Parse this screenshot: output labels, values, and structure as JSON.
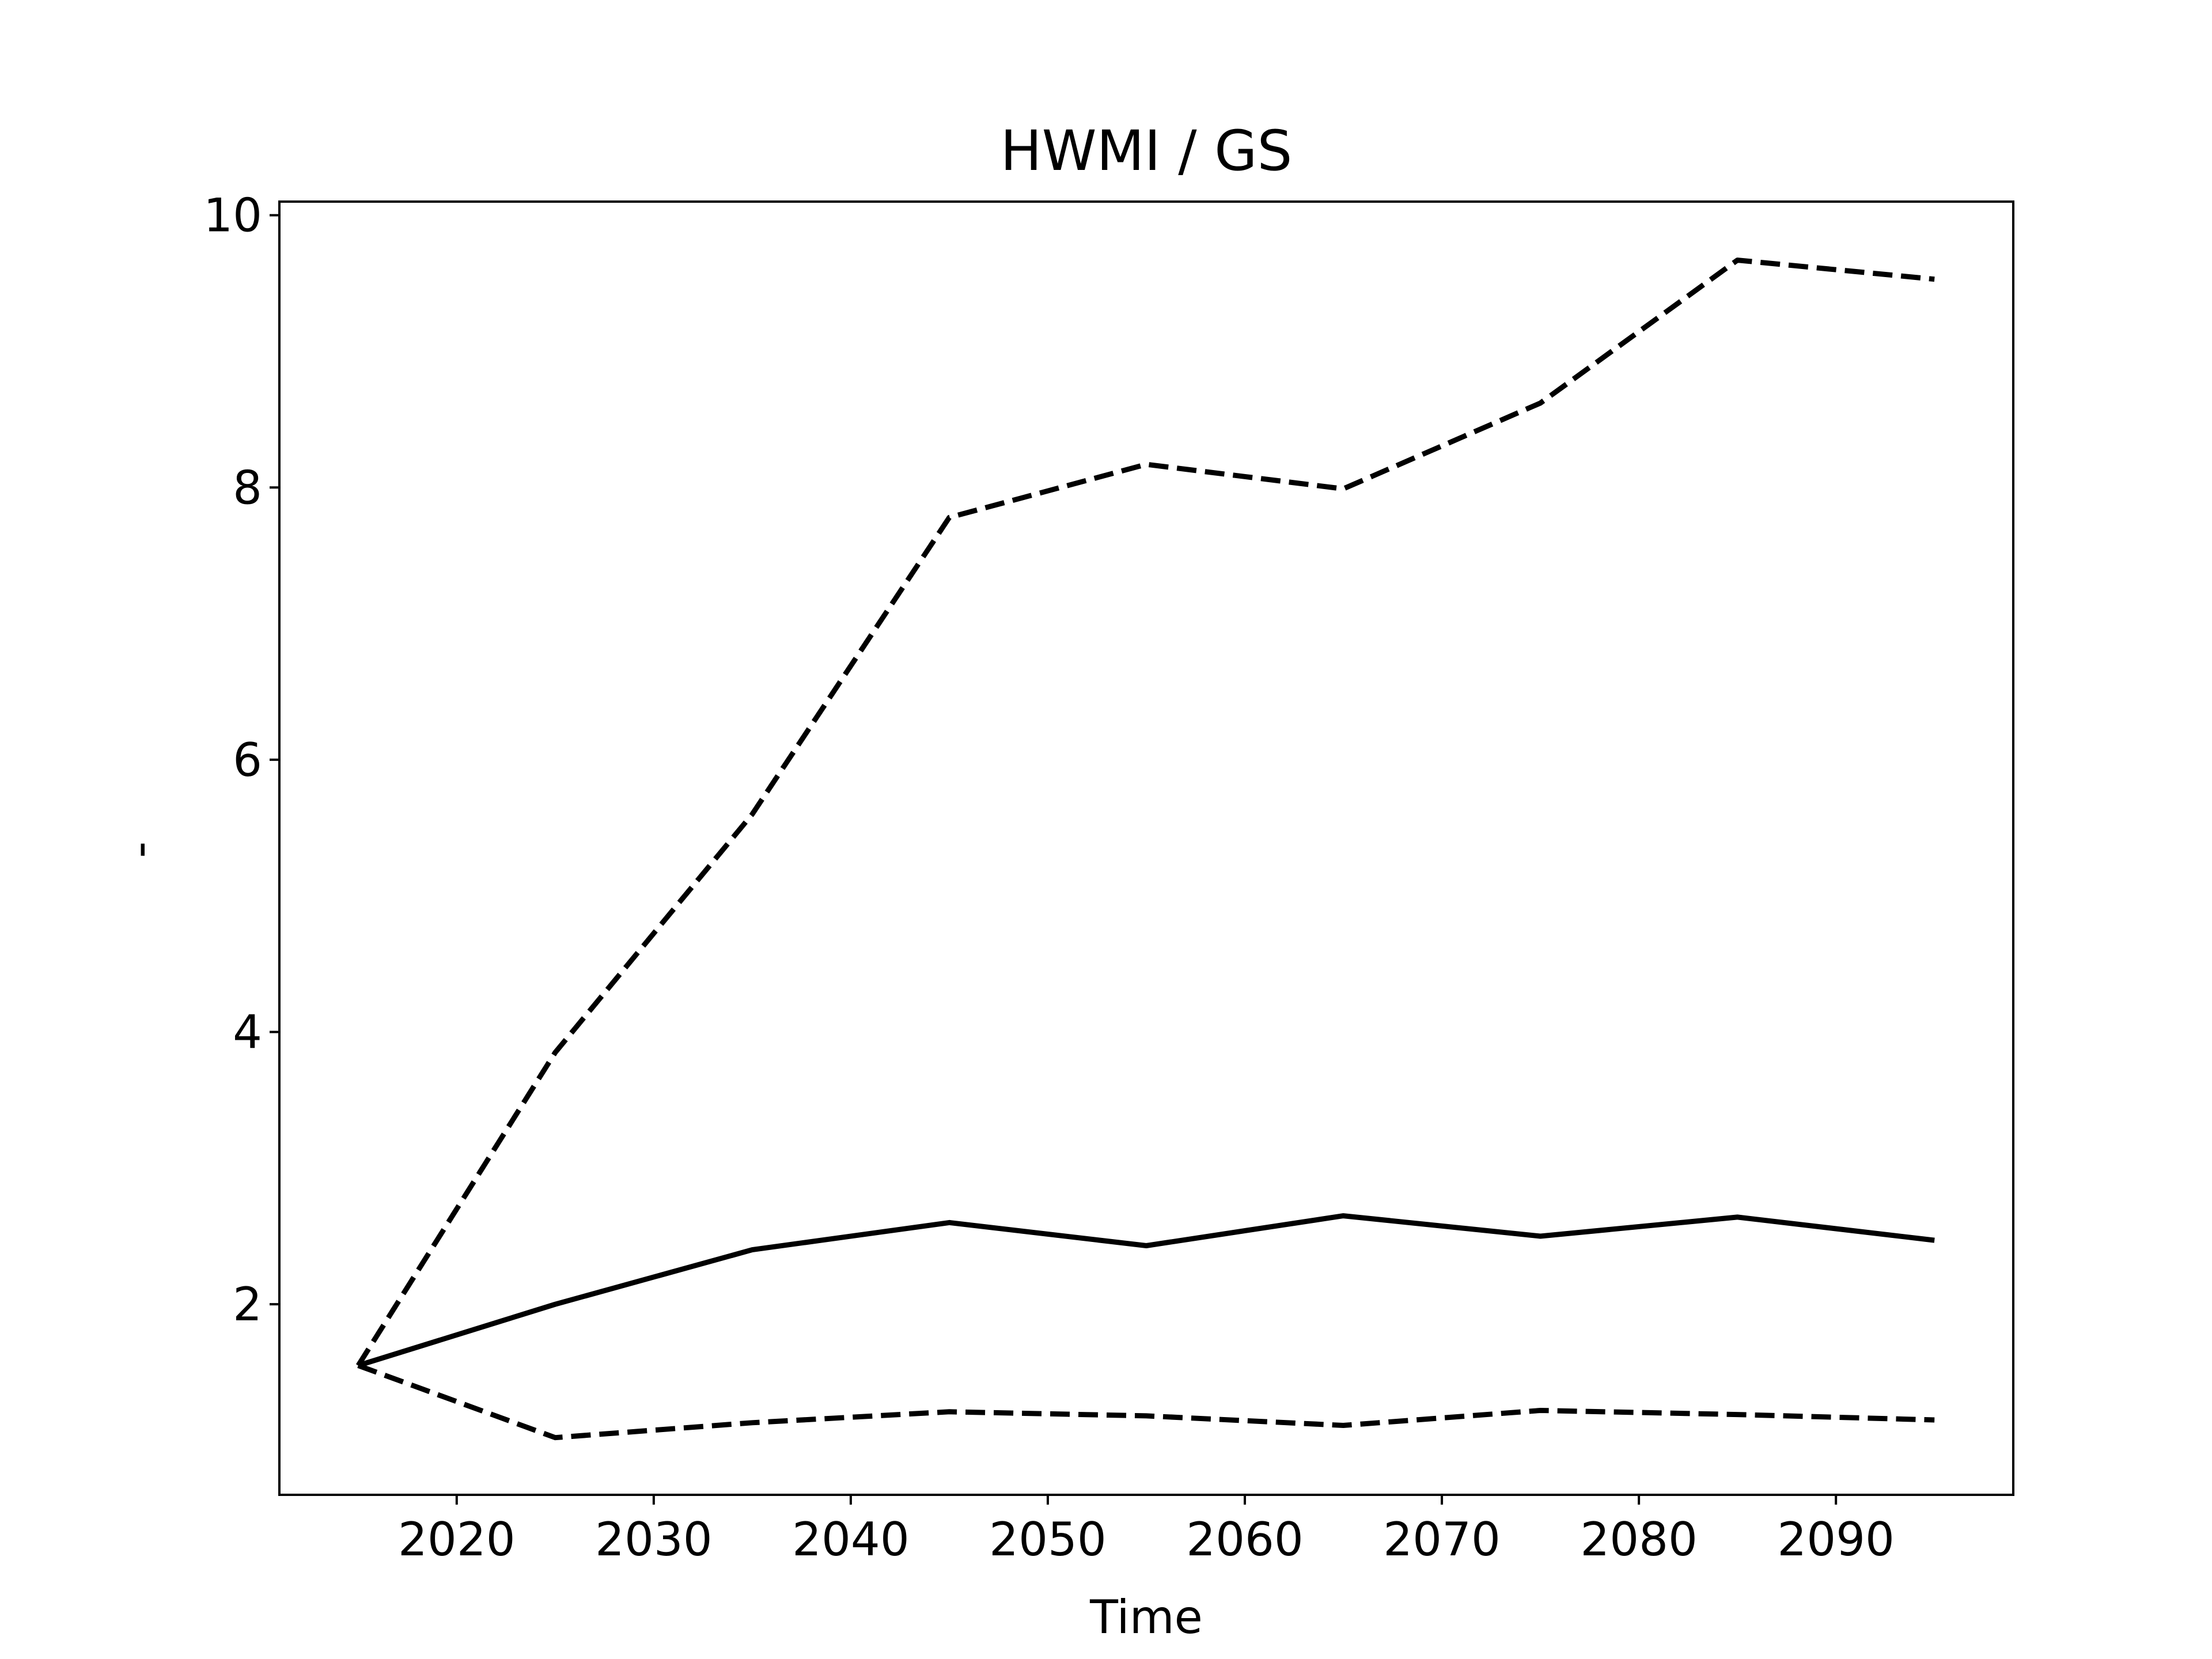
{
  "chart_data": {
    "type": "line",
    "title": "HWMI / GS",
    "xlabel": "Time",
    "ylabel": "-",
    "xlim": [
      2011,
      2099
    ],
    "ylim": [
      0.6,
      10.1
    ],
    "xticks": [
      2020,
      2030,
      2040,
      2050,
      2060,
      2070,
      2080,
      2090
    ],
    "xtick_labels": [
      "2020",
      "2030",
      "2040",
      "2050",
      "2060",
      "2070",
      "2080",
      "2090"
    ],
    "yticks": [
      2,
      4,
      6,
      8,
      10
    ],
    "ytick_labels": [
      "2",
      "4",
      "6",
      "8",
      "10"
    ],
    "grid": false,
    "legend": "none",
    "x": [
      2015,
      2025,
      2035,
      2045,
      2055,
      2065,
      2075,
      2085,
      2095
    ],
    "series": [
      {
        "style": "solid",
        "color": "#000000",
        "values": [
          1.55,
          2.0,
          2.4,
          2.6,
          2.43,
          2.65,
          2.5,
          2.64,
          2.47
        ]
      },
      {
        "style": "dashed",
        "color": "#000000",
        "values": [
          1.55,
          3.85,
          5.6,
          7.78,
          8.17,
          7.99,
          8.62,
          9.67,
          9.53
        ]
      },
      {
        "style": "dashed",
        "color": "#000000",
        "values": [
          1.55,
          1.02,
          1.13,
          1.21,
          1.18,
          1.11,
          1.22,
          1.19,
          1.15
        ]
      }
    ]
  }
}
